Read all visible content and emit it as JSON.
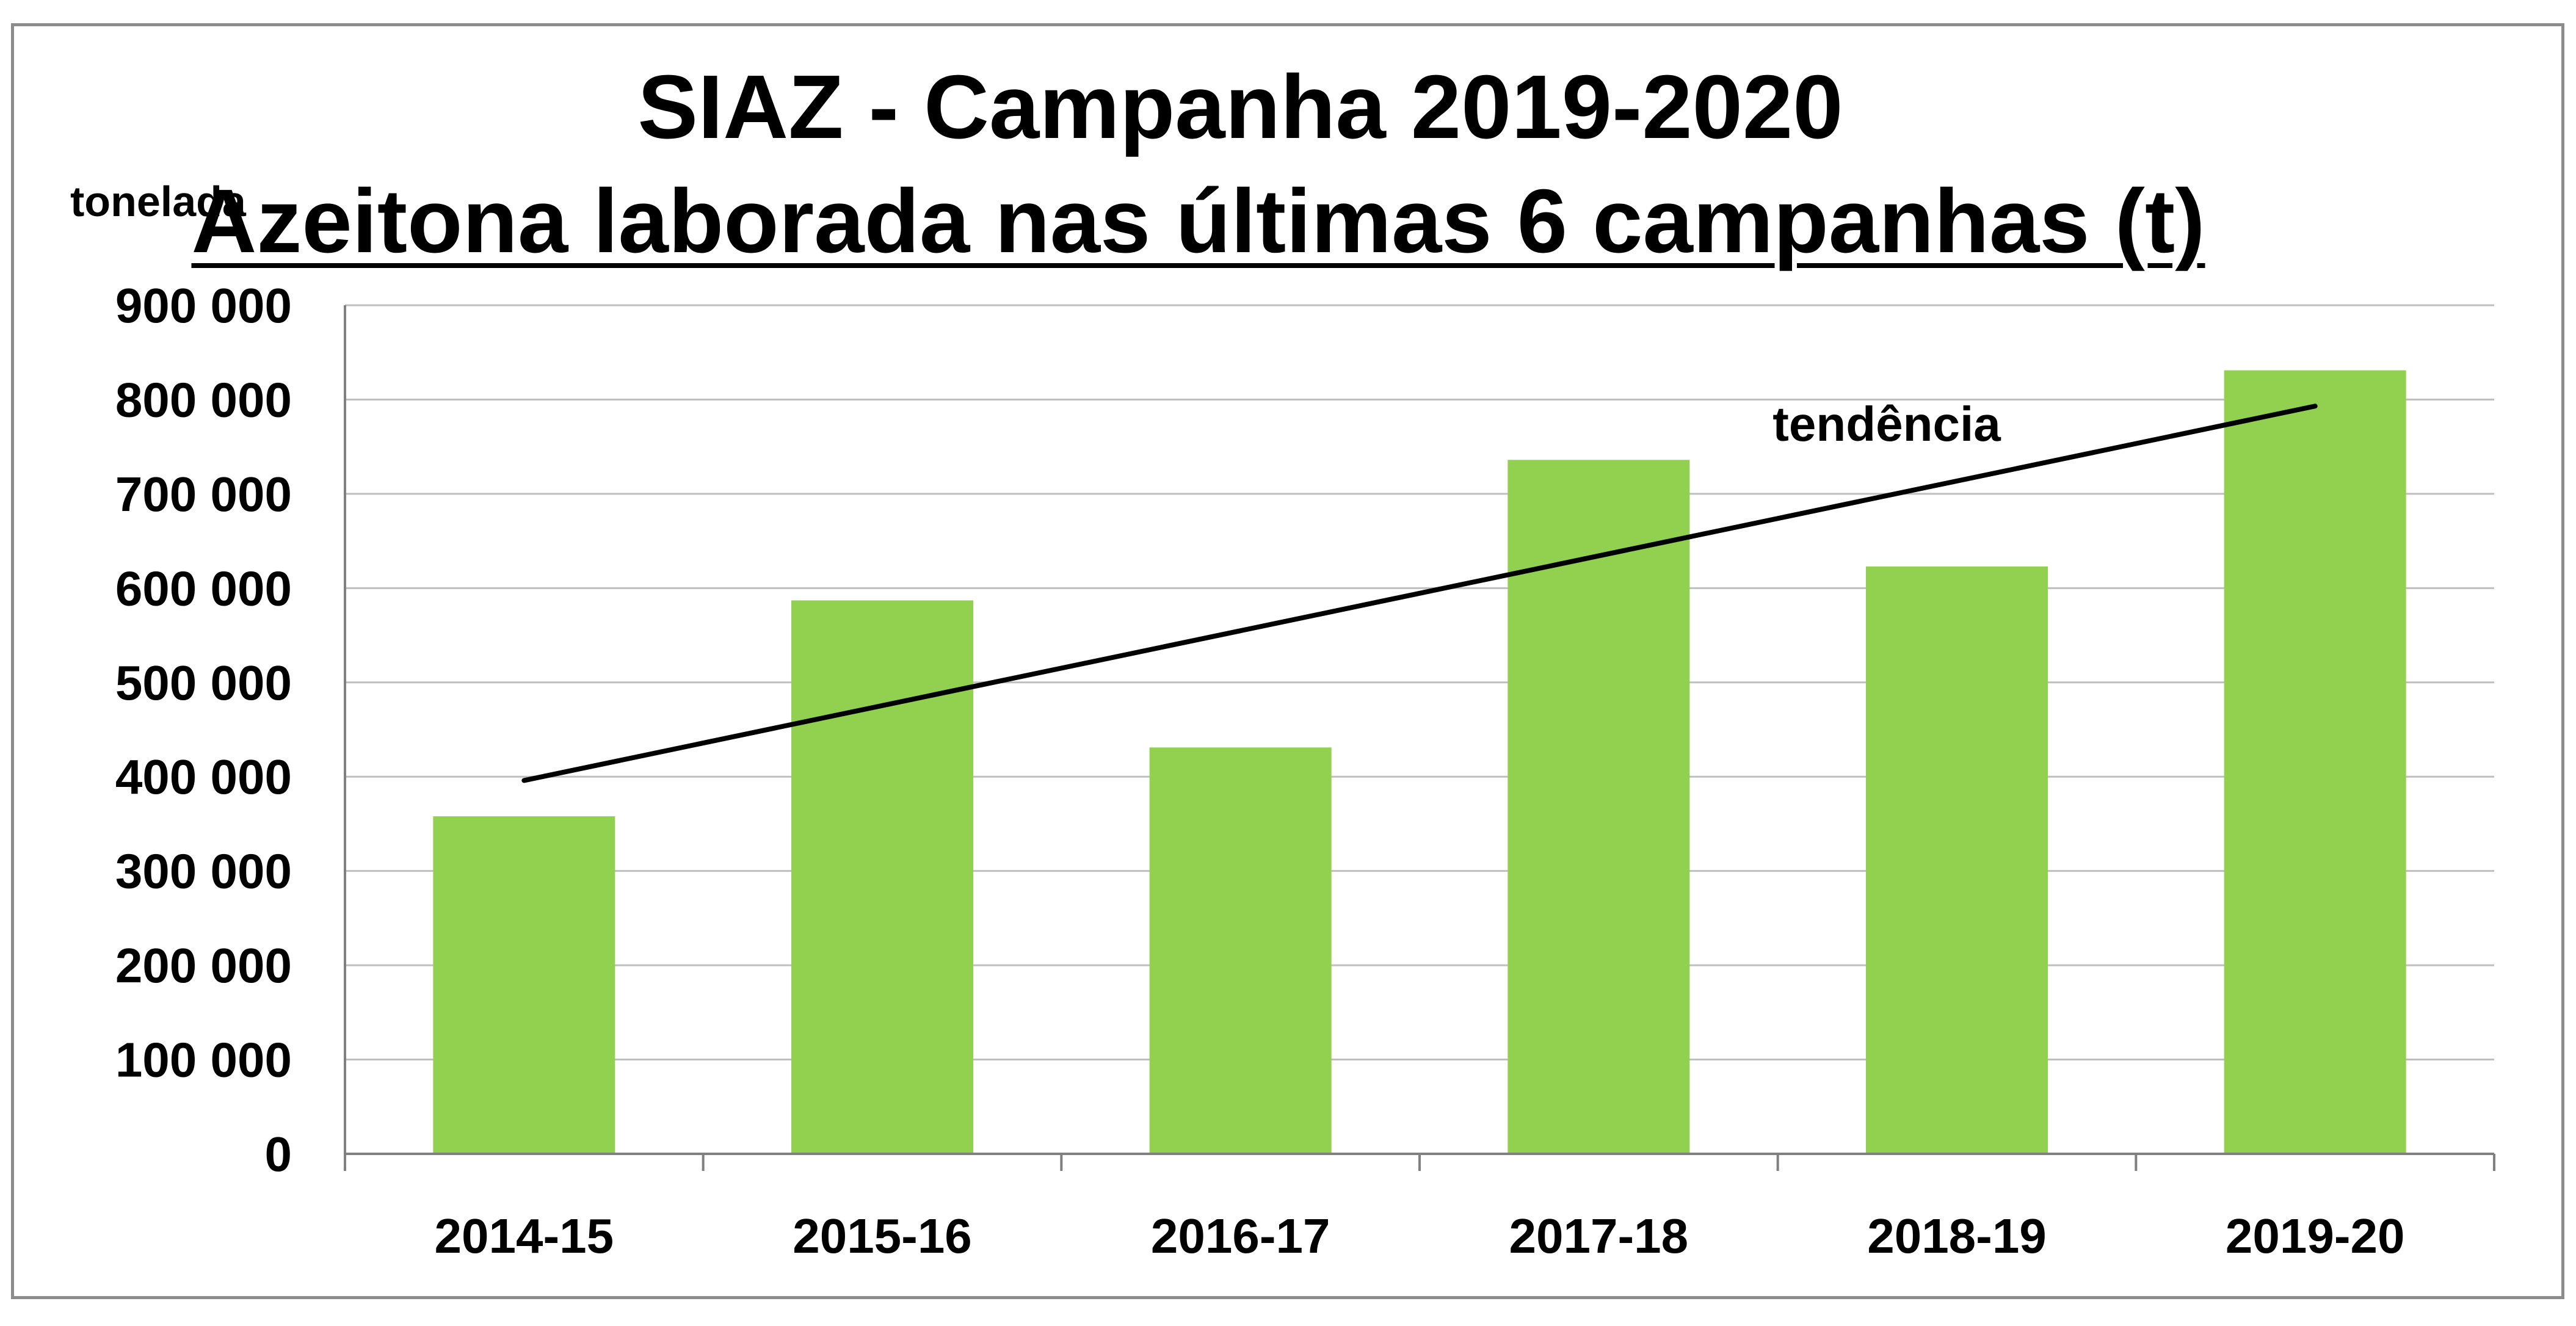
{
  "chart_data": {
    "type": "bar",
    "title": "SIAZ - Campanha 2019-2020",
    "subtitle": "Azeitona laborada nas últimas 6 campanhas (t)",
    "ylabel": "tonelada",
    "xlabel": "",
    "categories": [
      "2014-15",
      "2015-16",
      "2016-17",
      "2017-18",
      "2018-19",
      "2019-20"
    ],
    "series": [
      {
        "values": [
          358000,
          587000,
          431000,
          736000,
          623000,
          831000
        ]
      }
    ],
    "ylim": [
      0,
      900000
    ],
    "yticks": [
      0,
      100000,
      200000,
      300000,
      400000,
      500000,
      600000,
      700000,
      800000,
      900000
    ],
    "ytick_labels": [
      "0",
      "100 000",
      "200 000",
      "300 000",
      "400 000",
      "500 000",
      "600 000",
      "700 000",
      "800 000",
      "900 000"
    ],
    "grid": true,
    "trendline": {
      "label": "tendência",
      "start": 396000,
      "end": 793000
    },
    "colors": {
      "bar": "#92d050",
      "trend": "#000000",
      "grid": "#bfbfbf",
      "axis": "#808080",
      "frame": "#8c8c8c"
    }
  }
}
